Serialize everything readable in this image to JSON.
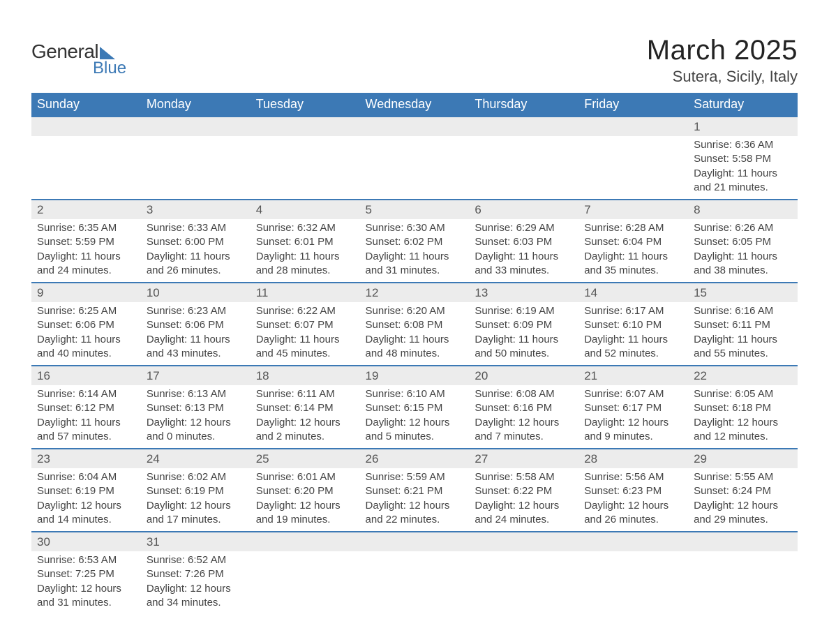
{
  "brand": {
    "name1": "General",
    "name2": "Blue"
  },
  "title": "March 2025",
  "location": "Sutera, Sicily, Italy",
  "colors": {
    "header_bg": "#3c79b5",
    "header_text": "#ffffff",
    "daynum_bg": "#ececec",
    "border": "#3c79b5",
    "text": "#444444",
    "title_text": "#232323"
  },
  "fonts": {
    "title_size": 40,
    "location_size": 22,
    "header_size": 18,
    "daynum_size": 17,
    "detail_size": 15
  },
  "day_headers": [
    "Sunday",
    "Monday",
    "Tuesday",
    "Wednesday",
    "Thursday",
    "Friday",
    "Saturday"
  ],
  "weeks": [
    {
      "nums": [
        "",
        "",
        "",
        "",
        "",
        "",
        "1"
      ],
      "details": [
        null,
        null,
        null,
        null,
        null,
        null,
        {
          "sunrise": "Sunrise: 6:36 AM",
          "sunset": "Sunset: 5:58 PM",
          "d1": "Daylight: 11 hours",
          "d2": "and 21 minutes."
        }
      ]
    },
    {
      "nums": [
        "2",
        "3",
        "4",
        "5",
        "6",
        "7",
        "8"
      ],
      "details": [
        {
          "sunrise": "Sunrise: 6:35 AM",
          "sunset": "Sunset: 5:59 PM",
          "d1": "Daylight: 11 hours",
          "d2": "and 24 minutes."
        },
        {
          "sunrise": "Sunrise: 6:33 AM",
          "sunset": "Sunset: 6:00 PM",
          "d1": "Daylight: 11 hours",
          "d2": "and 26 minutes."
        },
        {
          "sunrise": "Sunrise: 6:32 AM",
          "sunset": "Sunset: 6:01 PM",
          "d1": "Daylight: 11 hours",
          "d2": "and 28 minutes."
        },
        {
          "sunrise": "Sunrise: 6:30 AM",
          "sunset": "Sunset: 6:02 PM",
          "d1": "Daylight: 11 hours",
          "d2": "and 31 minutes."
        },
        {
          "sunrise": "Sunrise: 6:29 AM",
          "sunset": "Sunset: 6:03 PM",
          "d1": "Daylight: 11 hours",
          "d2": "and 33 minutes."
        },
        {
          "sunrise": "Sunrise: 6:28 AM",
          "sunset": "Sunset: 6:04 PM",
          "d1": "Daylight: 11 hours",
          "d2": "and 35 minutes."
        },
        {
          "sunrise": "Sunrise: 6:26 AM",
          "sunset": "Sunset: 6:05 PM",
          "d1": "Daylight: 11 hours",
          "d2": "and 38 minutes."
        }
      ]
    },
    {
      "nums": [
        "9",
        "10",
        "11",
        "12",
        "13",
        "14",
        "15"
      ],
      "details": [
        {
          "sunrise": "Sunrise: 6:25 AM",
          "sunset": "Sunset: 6:06 PM",
          "d1": "Daylight: 11 hours",
          "d2": "and 40 minutes."
        },
        {
          "sunrise": "Sunrise: 6:23 AM",
          "sunset": "Sunset: 6:06 PM",
          "d1": "Daylight: 11 hours",
          "d2": "and 43 minutes."
        },
        {
          "sunrise": "Sunrise: 6:22 AM",
          "sunset": "Sunset: 6:07 PM",
          "d1": "Daylight: 11 hours",
          "d2": "and 45 minutes."
        },
        {
          "sunrise": "Sunrise: 6:20 AM",
          "sunset": "Sunset: 6:08 PM",
          "d1": "Daylight: 11 hours",
          "d2": "and 48 minutes."
        },
        {
          "sunrise": "Sunrise: 6:19 AM",
          "sunset": "Sunset: 6:09 PM",
          "d1": "Daylight: 11 hours",
          "d2": "and 50 minutes."
        },
        {
          "sunrise": "Sunrise: 6:17 AM",
          "sunset": "Sunset: 6:10 PM",
          "d1": "Daylight: 11 hours",
          "d2": "and 52 minutes."
        },
        {
          "sunrise": "Sunrise: 6:16 AM",
          "sunset": "Sunset: 6:11 PM",
          "d1": "Daylight: 11 hours",
          "d2": "and 55 minutes."
        }
      ]
    },
    {
      "nums": [
        "16",
        "17",
        "18",
        "19",
        "20",
        "21",
        "22"
      ],
      "details": [
        {
          "sunrise": "Sunrise: 6:14 AM",
          "sunset": "Sunset: 6:12 PM",
          "d1": "Daylight: 11 hours",
          "d2": "and 57 minutes."
        },
        {
          "sunrise": "Sunrise: 6:13 AM",
          "sunset": "Sunset: 6:13 PM",
          "d1": "Daylight: 12 hours",
          "d2": "and 0 minutes."
        },
        {
          "sunrise": "Sunrise: 6:11 AM",
          "sunset": "Sunset: 6:14 PM",
          "d1": "Daylight: 12 hours",
          "d2": "and 2 minutes."
        },
        {
          "sunrise": "Sunrise: 6:10 AM",
          "sunset": "Sunset: 6:15 PM",
          "d1": "Daylight: 12 hours",
          "d2": "and 5 minutes."
        },
        {
          "sunrise": "Sunrise: 6:08 AM",
          "sunset": "Sunset: 6:16 PM",
          "d1": "Daylight: 12 hours",
          "d2": "and 7 minutes."
        },
        {
          "sunrise": "Sunrise: 6:07 AM",
          "sunset": "Sunset: 6:17 PM",
          "d1": "Daylight: 12 hours",
          "d2": "and 9 minutes."
        },
        {
          "sunrise": "Sunrise: 6:05 AM",
          "sunset": "Sunset: 6:18 PM",
          "d1": "Daylight: 12 hours",
          "d2": "and 12 minutes."
        }
      ]
    },
    {
      "nums": [
        "23",
        "24",
        "25",
        "26",
        "27",
        "28",
        "29"
      ],
      "details": [
        {
          "sunrise": "Sunrise: 6:04 AM",
          "sunset": "Sunset: 6:19 PM",
          "d1": "Daylight: 12 hours",
          "d2": "and 14 minutes."
        },
        {
          "sunrise": "Sunrise: 6:02 AM",
          "sunset": "Sunset: 6:19 PM",
          "d1": "Daylight: 12 hours",
          "d2": "and 17 minutes."
        },
        {
          "sunrise": "Sunrise: 6:01 AM",
          "sunset": "Sunset: 6:20 PM",
          "d1": "Daylight: 12 hours",
          "d2": "and 19 minutes."
        },
        {
          "sunrise": "Sunrise: 5:59 AM",
          "sunset": "Sunset: 6:21 PM",
          "d1": "Daylight: 12 hours",
          "d2": "and 22 minutes."
        },
        {
          "sunrise": "Sunrise: 5:58 AM",
          "sunset": "Sunset: 6:22 PM",
          "d1": "Daylight: 12 hours",
          "d2": "and 24 minutes."
        },
        {
          "sunrise": "Sunrise: 5:56 AM",
          "sunset": "Sunset: 6:23 PM",
          "d1": "Daylight: 12 hours",
          "d2": "and 26 minutes."
        },
        {
          "sunrise": "Sunrise: 5:55 AM",
          "sunset": "Sunset: 6:24 PM",
          "d1": "Daylight: 12 hours",
          "d2": "and 29 minutes."
        }
      ]
    },
    {
      "nums": [
        "30",
        "31",
        "",
        "",
        "",
        "",
        ""
      ],
      "details": [
        {
          "sunrise": "Sunrise: 6:53 AM",
          "sunset": "Sunset: 7:25 PM",
          "d1": "Daylight: 12 hours",
          "d2": "and 31 minutes."
        },
        {
          "sunrise": "Sunrise: 6:52 AM",
          "sunset": "Sunset: 7:26 PM",
          "d1": "Daylight: 12 hours",
          "d2": "and 34 minutes."
        },
        null,
        null,
        null,
        null,
        null
      ]
    }
  ]
}
